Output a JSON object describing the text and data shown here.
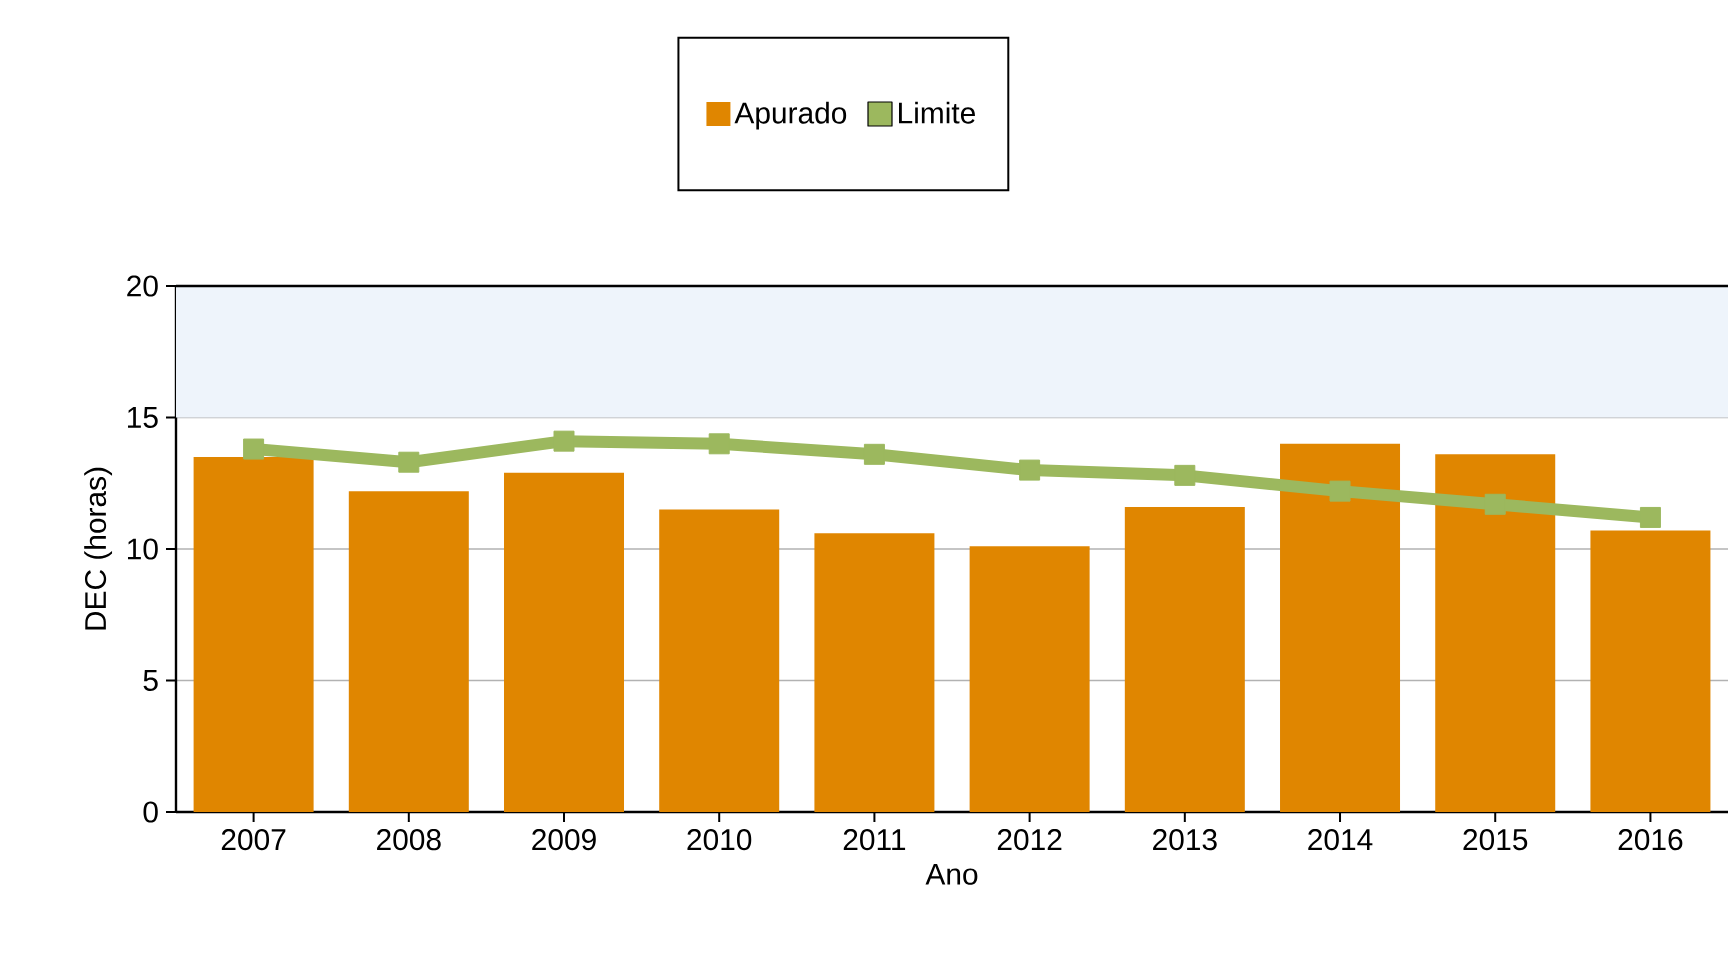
{
  "chart_data": {
    "type": "bar",
    "xlabel": "Ano",
    "ylabel": "DEC (horas)",
    "categories": [
      "2007",
      "2008",
      "2009",
      "2010",
      "2011",
      "2012",
      "2013",
      "2014",
      "2015",
      "2016"
    ],
    "series": [
      {
        "name": "Apurado",
        "color": "#e08600",
        "values": [
          13.5,
          12.2,
          12.9,
          11.5,
          10.6,
          10.1,
          11.6,
          14.0,
          13.6,
          10.7
        ]
      },
      {
        "name": "Limite",
        "type": "line",
        "color": "#9cb85e",
        "marker": "square",
        "values": [
          13.8,
          13.3,
          14.1,
          14.0,
          13.6,
          13.0,
          12.8,
          12.2,
          11.7,
          11.2
        ]
      }
    ],
    "ylim": [
      0,
      20
    ],
    "yticks": [
      0,
      5,
      10,
      15,
      20
    ],
    "grid": "y",
    "legend": "top",
    "bands": [
      {
        "axis": "y",
        "from": 15,
        "to": 20,
        "color": "#eef4fb"
      }
    ]
  }
}
